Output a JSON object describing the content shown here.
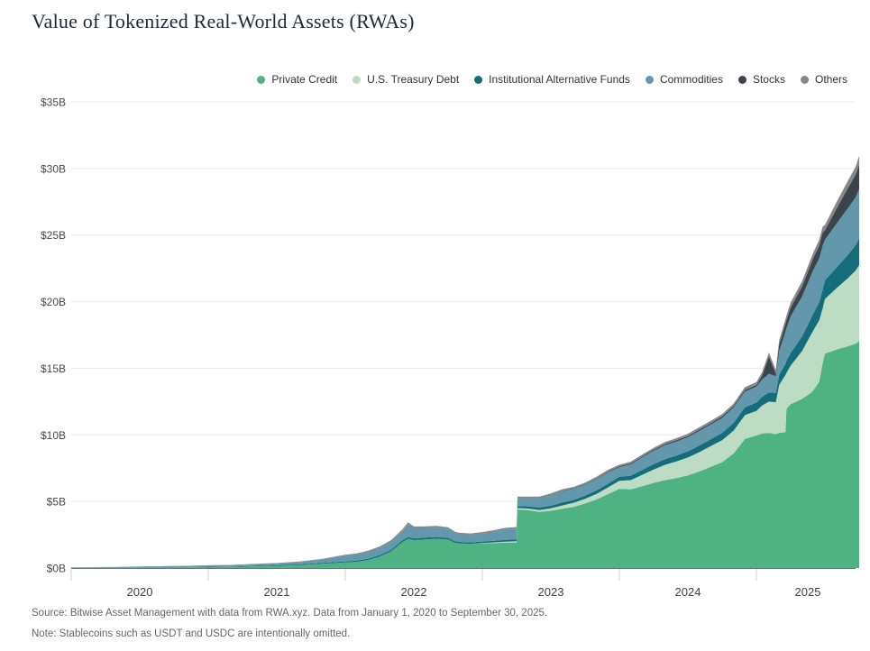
{
  "page": {
    "title": "Value of Tokenized Real-World Assets (RWAs)"
  },
  "footer": {
    "source": "Source: Bitwise Asset Management with data from RWA.xyz. Data from January 1, 2020 to September 30, 2025.",
    "note": "Note: Stablecoins such as USDT and USDC are intentionally omitted."
  },
  "chart_data": {
    "type": "area",
    "stacked": true,
    "title": "Value of Tokenized Real-World Assets (RWAs)",
    "grid": "horizontal",
    "legend_position": "top-right",
    "x_unit": "months_since_2020_01",
    "x_range_note": "January 1, 2020 to September 30, 2025",
    "ylim": [
      0,
      35
    ],
    "y_axis": {
      "values": [
        0,
        5,
        10,
        15,
        20,
        25,
        30,
        35
      ],
      "ticks": [
        "$0B",
        "$5B",
        "$10B",
        "$15B",
        "$20B",
        "$25B",
        "$30B",
        "$35B"
      ]
    },
    "x_axis": {
      "year_labels": [
        "2020",
        "2021",
        "2022",
        "2023",
        "2024",
        "2025"
      ],
      "tick_months": [
        0,
        12,
        24,
        36,
        48,
        60
      ],
      "label_months": [
        6,
        18,
        30,
        42,
        54,
        64.5
      ],
      "end_month": 69
    },
    "x": [
      0,
      2,
      4,
      6,
      8,
      10,
      12,
      14,
      16,
      18,
      20,
      22,
      24,
      25,
      26,
      27,
      28,
      29,
      29.5,
      30,
      31,
      32,
      33,
      33.6,
      34,
      35,
      36,
      37,
      38,
      39,
      39.08,
      40,
      41,
      42,
      43,
      44,
      45,
      46,
      47,
      48,
      49,
      50,
      51,
      52,
      53,
      54,
      55,
      56,
      57,
      58,
      59,
      60,
      60.5,
      61.1,
      61.7,
      62,
      62.55,
      62.63,
      63,
      64,
      64.7,
      65,
      65.5,
      65.8,
      66,
      67,
      68,
      68.7,
      69
    ],
    "series": [
      {
        "name": "Private Credit",
        "color": "#4fb283",
        "values": [
          0.01,
          0.01,
          0.02,
          0.03,
          0.04,
          0.05,
          0.07,
          0.09,
          0.12,
          0.16,
          0.22,
          0.32,
          0.42,
          0.47,
          0.6,
          0.85,
          1.25,
          1.95,
          2.2,
          2.1,
          2.15,
          2.2,
          2.15,
          1.9,
          1.85,
          1.82,
          1.85,
          1.88,
          1.9,
          1.92,
          4.4,
          4.35,
          4.22,
          4.3,
          4.45,
          4.6,
          4.85,
          5.15,
          5.55,
          5.95,
          5.9,
          6.15,
          6.4,
          6.6,
          6.75,
          6.95,
          7.25,
          7.6,
          7.95,
          8.6,
          9.7,
          9.95,
          10.1,
          10.15,
          10.05,
          10.15,
          10.2,
          11.95,
          12.3,
          12.7,
          13.1,
          13.35,
          14,
          15.4,
          16.1,
          16.4,
          16.65,
          16.85,
          17.05
        ]
      },
      {
        "name": "U.S. Treasury Debt",
        "color": "#bcdcc4",
        "values": [
          0,
          0,
          0,
          0,
          0,
          0,
          0,
          0,
          0,
          0,
          0,
          0,
          0,
          0,
          0,
          0,
          0,
          0,
          0,
          0,
          0,
          0,
          0,
          0,
          0,
          0,
          0.02,
          0.05,
          0.08,
          0.1,
          0.1,
          0.12,
          0.14,
          0.18,
          0.25,
          0.3,
          0.35,
          0.42,
          0.5,
          0.6,
          0.7,
          0.85,
          1,
          1.15,
          1.25,
          1.35,
          1.45,
          1.55,
          1.65,
          1.72,
          1.78,
          1.85,
          2.1,
          2.35,
          2.4,
          3.6,
          4.3,
          2.7,
          2.9,
          3.6,
          4.3,
          4.5,
          4.6,
          4.1,
          4.1,
          4.6,
          5.1,
          5.5,
          5.7
        ]
      },
      {
        "name": "Institutional Alternative Funds",
        "color": "#156d7c",
        "values": [
          0.01,
          0.01,
          0.01,
          0.02,
          0.02,
          0.02,
          0.03,
          0.03,
          0.04,
          0.05,
          0.06,
          0.07,
          0.08,
          0.09,
          0.1,
          0.11,
          0.12,
          0.13,
          0.13,
          0.13,
          0.13,
          0.13,
          0.12,
          0.11,
          0.11,
          0.11,
          0.12,
          0.12,
          0.13,
          0.13,
          0.15,
          0.16,
          0.18,
          0.2,
          0.22,
          0.22,
          0.24,
          0.26,
          0.28,
          0.3,
          0.33,
          0.36,
          0.4,
          0.43,
          0.45,
          0.47,
          0.5,
          0.52,
          0.55,
          0.58,
          0.6,
          0.62,
          0.65,
          0.68,
          0.7,
          0.75,
          0.85,
          0.9,
          0.95,
          1.1,
          1.2,
          1.3,
          1.35,
          1.4,
          1.4,
          1.55,
          1.75,
          1.9,
          2
        ]
      },
      {
        "name": "Commodities",
        "color": "#6297ac",
        "values": [
          0.03,
          0.04,
          0.05,
          0.06,
          0.07,
          0.08,
          0.09,
          0.1,
          0.12,
          0.14,
          0.17,
          0.25,
          0.42,
          0.45,
          0.5,
          0.55,
          0.6,
          0.68,
          0.95,
          0.75,
          0.72,
          0.7,
          0.68,
          0.6,
          0.58,
          0.57,
          0.6,
          0.68,
          0.8,
          0.82,
          0.6,
          0.62,
          0.7,
          0.78,
          0.85,
          0.82,
          0.8,
          0.85,
          0.85,
          0.72,
          0.85,
          0.95,
          1,
          1.05,
          1.05,
          1.05,
          1.1,
          1.1,
          1.12,
          1.15,
          1.18,
          1.2,
          1.3,
          1.4,
          1.25,
          1.8,
          2.4,
          2.45,
          2.75,
          3,
          3.2,
          3.25,
          3.3,
          3.3,
          3.05,
          3.3,
          3.5,
          3.6,
          3.7
        ]
      },
      {
        "name": "Stocks",
        "color": "#3d434a",
        "values": [
          0,
          0,
          0,
          0,
          0,
          0,
          0,
          0,
          0,
          0,
          0,
          0.01,
          0.01,
          0.01,
          0.01,
          0.01,
          0.01,
          0.01,
          0.01,
          0.01,
          0.01,
          0.01,
          0.01,
          0.01,
          0.01,
          0.01,
          0.01,
          0.01,
          0.01,
          0.01,
          0.02,
          0.02,
          0.03,
          0.03,
          0.04,
          0.04,
          0.05,
          0.05,
          0.06,
          0.06,
          0.07,
          0.07,
          0.08,
          0.08,
          0.09,
          0.09,
          0.1,
          0.1,
          0.11,
          0.11,
          0.12,
          0.12,
          0.3,
          1.3,
          0.2,
          0.5,
          0.6,
          0.6,
          0.65,
          0.75,
          0.85,
          0.9,
          0.95,
          1,
          0.7,
          1.1,
          1.5,
          1.7,
          1.85
        ]
      },
      {
        "name": "Others",
        "color": "#84888c",
        "values": [
          0.01,
          0.01,
          0.01,
          0.01,
          0.01,
          0.02,
          0.02,
          0.02,
          0.03,
          0.03,
          0.04,
          0.05,
          0.07,
          0.08,
          0.09,
          0.1,
          0.11,
          0.13,
          0.14,
          0.13,
          0.12,
          0.12,
          0.11,
          0.1,
          0.1,
          0.09,
          0.1,
          0.1,
          0.1,
          0.1,
          0.1,
          0.1,
          0.1,
          0.11,
          0.11,
          0.11,
          0.12,
          0.12,
          0.13,
          0.13,
          0.14,
          0.14,
          0.15,
          0.16,
          0.16,
          0.17,
          0.17,
          0.18,
          0.18,
          0.19,
          0.2,
          0.22,
          0.25,
          0.3,
          0.28,
          0.32,
          0.35,
          0.35,
          0.38,
          0.4,
          0.42,
          0.42,
          0.44,
          0.44,
          0.4,
          0.5,
          0.55,
          0.6,
          0.65
        ]
      }
    ]
  }
}
